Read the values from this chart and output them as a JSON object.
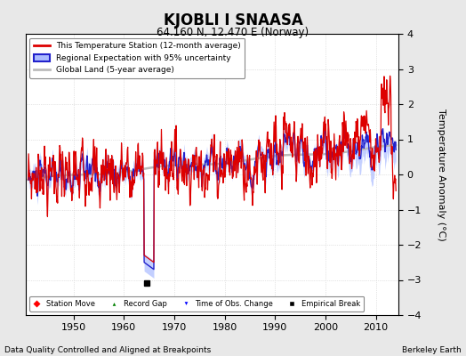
{
  "title": "KJOBLI I SNAASA",
  "subtitle": "64.160 N, 12.470 E (Norway)",
  "ylabel": "Temperature Anomaly (°C)",
  "xlabel_bottom": "Data Quality Controlled and Aligned at Breakpoints",
  "xlabel_right": "Berkeley Earth",
  "ylim": [
    -4,
    4
  ],
  "xlim": [
    1940.5,
    2014.5
  ],
  "xticks": [
    1950,
    1960,
    1970,
    1980,
    1990,
    2000,
    2010
  ],
  "yticks": [
    -4,
    -3,
    -2,
    -1,
    0,
    1,
    2,
    3,
    4
  ],
  "bg_color": "#e8e8e8",
  "plot_bg_color": "#ffffff",
  "station_color": "#dd0000",
  "regional_color": "#2222cc",
  "regional_fill_color": "#aabbff",
  "global_color": "#bbbbbb",
  "empirical_break_x": 1964.5,
  "empirical_break_y": -3.1,
  "seed": 42
}
